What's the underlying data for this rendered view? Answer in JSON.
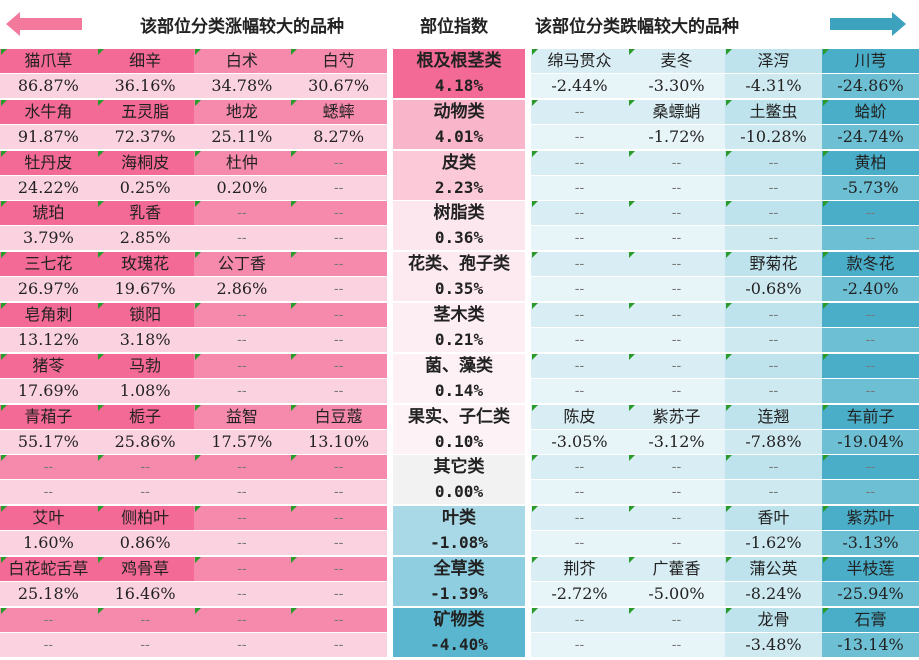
{
  "header": {
    "left_title": "该部位分类涨幅较大的品种",
    "mid_title": "部位指数",
    "right_title": "该部位分类跌幅较大的品种"
  },
  "placeholder": "--",
  "colors": {
    "left_top": "#f46a96",
    "left_top_alt": "#f68aad",
    "left_bottom": "#fbd3e0",
    "right_top": "#d8eef4",
    "right_bottom": "#e7f4f8",
    "right_col4_top": "#4aaec9",
    "right_col4_bottom": "#6dbfd4",
    "arrow_left": "#f2799c",
    "arrow_right": "#3da2bd"
  },
  "left": [
    [
      {
        "name": "猫爪草",
        "pct": "86.87%"
      },
      {
        "name": "细辛",
        "pct": "36.16%"
      },
      {
        "name": "白术",
        "pct": "34.78%"
      },
      {
        "name": "白芍",
        "pct": "30.67%"
      }
    ],
    [
      {
        "name": "水牛角",
        "pct": "91.87%"
      },
      {
        "name": "五灵脂",
        "pct": "72.37%"
      },
      {
        "name": "地龙",
        "pct": "25.11%"
      },
      {
        "name": "蟋蟀",
        "pct": "8.27%"
      }
    ],
    [
      {
        "name": "牡丹皮",
        "pct": "24.22%"
      },
      {
        "name": "海桐皮",
        "pct": "0.25%"
      },
      {
        "name": "杜仲",
        "pct": "0.20%"
      },
      null
    ],
    [
      {
        "name": "琥珀",
        "pct": "3.79%"
      },
      {
        "name": "乳香",
        "pct": "2.85%"
      },
      null,
      null
    ],
    [
      {
        "name": "三七花",
        "pct": "26.97%"
      },
      {
        "name": "玫瑰花",
        "pct": "19.67%"
      },
      {
        "name": "公丁香",
        "pct": "2.86%"
      },
      null
    ],
    [
      {
        "name": "皂角刺",
        "pct": "13.12%"
      },
      {
        "name": "锁阳",
        "pct": "3.18%"
      },
      null,
      null
    ],
    [
      {
        "name": "猪苓",
        "pct": "17.69%"
      },
      {
        "name": "马勃",
        "pct": "1.08%"
      },
      null,
      null
    ],
    [
      {
        "name": "青葙子",
        "pct": "55.17%"
      },
      {
        "name": "栀子",
        "pct": "25.86%"
      },
      {
        "name": "益智",
        "pct": "17.57%"
      },
      {
        "name": "白豆蔻",
        "pct": "13.10%"
      }
    ],
    [
      null,
      null,
      null,
      null
    ],
    [
      {
        "name": "艾叶",
        "pct": "1.60%"
      },
      {
        "name": "侧柏叶",
        "pct": "0.86%"
      },
      null,
      null
    ],
    [
      {
        "name": "白花蛇舌草",
        "pct": "25.18%"
      },
      {
        "name": "鸡骨草",
        "pct": "16.46%"
      },
      null,
      null
    ],
    [
      null,
      null,
      null,
      null
    ]
  ],
  "mid": [
    {
      "name": "根及根茎类",
      "val": "4.18%",
      "bg": "#f46a96"
    },
    {
      "name": "动物类",
      "val": "4.01%",
      "bg": "#f9b6cb"
    },
    {
      "name": "皮类",
      "val": "2.23%",
      "bg": "#fbc9d8"
    },
    {
      "name": "树脂类",
      "val": "0.36%",
      "bg": "#fde7ee"
    },
    {
      "name": "花类、孢子类",
      "val": "0.35%",
      "bg": "#fde9f0"
    },
    {
      "name": "茎木类",
      "val": "0.21%",
      "bg": "#fdeef3"
    },
    {
      "name": "菌、藻类",
      "val": "0.14%",
      "bg": "#fdf1f5"
    },
    {
      "name": "果实、子仁类",
      "val": "0.10%",
      "bg": "#fdf3f6"
    },
    {
      "name": "其它类",
      "val": "0.00%",
      "bg": "#f2f2f2"
    },
    {
      "name": "叶类",
      "val": "-1.08%",
      "bg": "#a9d9e6"
    },
    {
      "name": "全草类",
      "val": "-1.39%",
      "bg": "#8fcee0"
    },
    {
      "name": "矿物类",
      "val": "-4.40%",
      "bg": "#5ab6cf"
    }
  ],
  "right": [
    [
      {
        "name": "绵马贯众",
        "pct": "-2.44%"
      },
      {
        "name": "麦冬",
        "pct": "-3.30%"
      },
      {
        "name": "泽泻",
        "pct": "-4.31%"
      },
      {
        "name": "川芎",
        "pct": "-24.86%"
      }
    ],
    [
      null,
      {
        "name": "桑螵蛸",
        "pct": "-1.72%"
      },
      {
        "name": "土鳖虫",
        "pct": "-10.28%"
      },
      {
        "name": "蛤蚧",
        "pct": "-24.74%"
      }
    ],
    [
      null,
      null,
      null,
      {
        "name": "黄柏",
        "pct": "-5.73%"
      }
    ],
    [
      null,
      null,
      null,
      null
    ],
    [
      null,
      null,
      {
        "name": "野菊花",
        "pct": "-0.68%"
      },
      {
        "name": "款冬花",
        "pct": "-2.40%"
      }
    ],
    [
      null,
      null,
      null,
      null
    ],
    [
      null,
      null,
      null,
      null
    ],
    [
      {
        "name": "陈皮",
        "pct": "-3.05%"
      },
      {
        "name": "紫苏子",
        "pct": "-3.12%"
      },
      {
        "name": "连翘",
        "pct": "-7.88%"
      },
      {
        "name": "车前子",
        "pct": "-19.04%"
      }
    ],
    [
      null,
      null,
      null,
      null
    ],
    [
      null,
      null,
      {
        "name": "香叶",
        "pct": "-1.62%"
      },
      {
        "name": "紫苏叶",
        "pct": "-3.13%"
      }
    ],
    [
      {
        "name": "荆芥",
        "pct": "-2.72%"
      },
      {
        "name": "广藿香",
        "pct": "-5.00%"
      },
      {
        "name": "蒲公英",
        "pct": "-8.24%"
      },
      {
        "name": "半枝莲",
        "pct": "-25.94%"
      }
    ],
    [
      null,
      null,
      {
        "name": "龙骨",
        "pct": "-3.48%"
      },
      {
        "name": "石膏",
        "pct": "-13.14%"
      }
    ]
  ]
}
